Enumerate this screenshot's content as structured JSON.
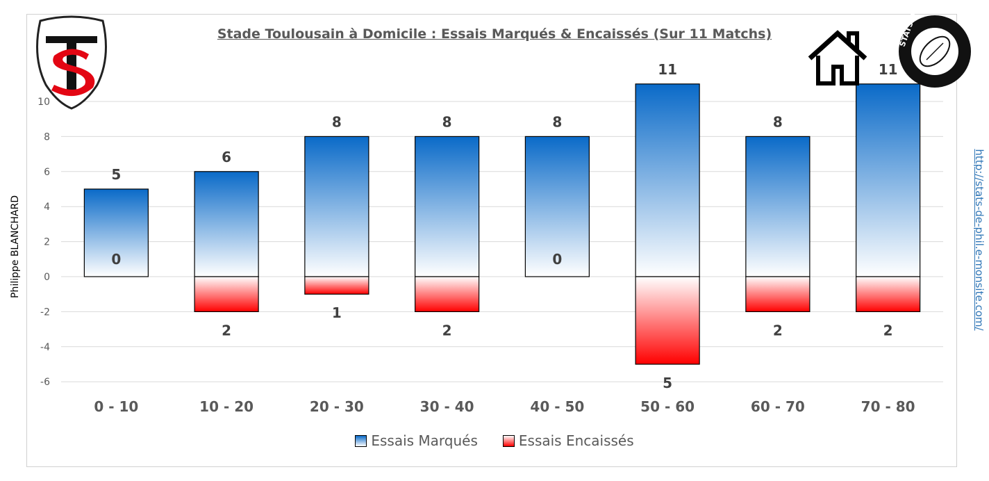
{
  "title": "Stade Toulousain à Domicile : Essais Marqués & Encaissés (Sur 11 Matchs)",
  "side_left": "Philippe BLANCHARD",
  "side_right": "http://stats-de-phil.e-monsite.com/",
  "logos": {
    "left": "TS",
    "right": "STATS DE PHIL",
    "right_icon": "rugby-ball-icon",
    "house_icon": "house-icon"
  },
  "colors": {
    "scored": "#0a6ac8",
    "conceded": "#ff0000",
    "grid": "#d9d9d9",
    "text": "#595959"
  },
  "chart_data": {
    "type": "bar",
    "categories": [
      "0 - 10",
      "10 - 20",
      "20 - 30",
      "30 - 40",
      "40 - 50",
      "50 - 60",
      "60 - 70",
      "70 - 80"
    ],
    "series": [
      {
        "name": "Essais Marqués",
        "values": [
          5,
          6,
          8,
          8,
          8,
          11,
          8,
          11
        ],
        "labels": [
          "5",
          "6",
          "8",
          "8",
          "8",
          "11",
          "8",
          "11"
        ]
      },
      {
        "name": "Essais Encaissés",
        "values": [
          0,
          -2,
          -1,
          -2,
          0,
          -5,
          -2,
          -2
        ],
        "labels": [
          "0",
          "2",
          "1",
          "2",
          "0",
          "5",
          "2",
          "2"
        ]
      }
    ],
    "yticks": [
      10,
      8,
      6,
      4,
      2,
      0,
      -2,
      -4,
      -6
    ],
    "ylim": [
      -6,
      11
    ],
    "grid": true,
    "legend": "bottom"
  }
}
